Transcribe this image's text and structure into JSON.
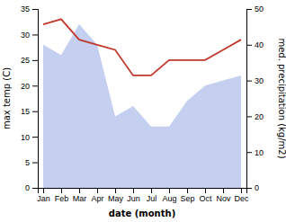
{
  "chart_data": {
    "type": "line",
    "categories": [
      "Jan",
      "Feb",
      "Mar",
      "Apr",
      "May",
      "Jun",
      "Jul",
      "Aug",
      "Sep",
      "Oct",
      "Nov",
      "Dec"
    ],
    "series": [
      {
        "type": "area",
        "color": "#c5cff0",
        "values": [
          28,
          26,
          32,
          28,
          14,
          16,
          12,
          12,
          17,
          20,
          21,
          22
        ]
      },
      {
        "type": "line",
        "color": "#c0392b",
        "values": [
          32,
          33,
          29,
          28,
          27,
          22,
          22,
          25,
          25,
          25,
          27,
          29
        ]
      }
    ],
    "x_label": "date (month)",
    "y_label": "max temp (C)",
    "y2_label": "med. precipitation (kg/m2)",
    "ylim": [
      0,
      35
    ],
    "yticks": [
      0,
      5,
      10,
      15,
      20,
      25,
      30,
      35
    ],
    "y2lim": [
      0,
      50
    ],
    "y2ticks": [
      0,
      10,
      20,
      30,
      40,
      50
    ]
  }
}
